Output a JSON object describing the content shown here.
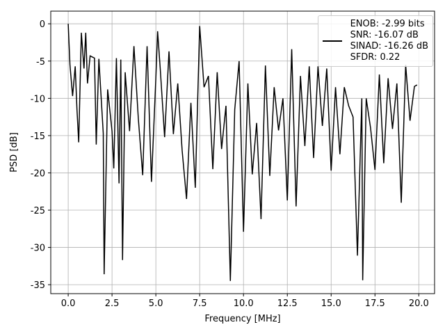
{
  "chart_data": {
    "type": "line",
    "xlabel": "Frequency [MHz]",
    "ylabel": "PSD [dB]",
    "x": [
      0,
      0.1,
      0.25,
      0.4,
      0.5,
      0.6,
      0.75,
      0.9,
      1.0,
      1.1,
      1.25,
      1.5,
      1.6,
      1.75,
      2.0,
      2.05,
      2.25,
      2.5,
      2.6,
      2.75,
      2.9,
      3.0,
      3.1,
      3.25,
      3.5,
      3.75,
      4.0,
      4.25,
      4.5,
      4.75,
      5.0,
      5.1,
      5.25,
      5.5,
      5.75,
      6.0,
      6.25,
      6.5,
      6.75,
      7.0,
      7.25,
      7.5,
      7.75,
      8.0,
      8.25,
      8.5,
      8.75,
      9.0,
      9.25,
      9.5,
      9.75,
      10.0,
      10.25,
      10.5,
      10.75,
      11.0,
      11.25,
      11.5,
      11.75,
      12.0,
      12.25,
      12.5,
      12.75,
      13.0,
      13.25,
      13.5,
      13.75,
      14.0,
      14.25,
      14.5,
      14.75,
      15.0,
      15.25,
      15.5,
      15.75,
      16.0,
      16.25,
      16.5,
      16.75,
      16.8,
      17.0,
      17.25,
      17.5,
      17.75,
      18.0,
      18.25,
      18.5,
      18.75,
      19.0,
      19.25,
      19.5,
      19.75,
      19.9
    ],
    "series": [
      {
        "name": "ENOB: -2.99 bits\nSNR: -16.07 dB\nSINAD: -16.26 dB\nSFDR: 0.22",
        "color": "#000000",
        "values": [
          0,
          -5.5,
          -9.7,
          -5.7,
          -11.5,
          -15.9,
          -1.2,
          -6.0,
          -1.2,
          -8.0,
          -4.3,
          -4.6,
          -16.2,
          -4.7,
          -14.7,
          -33.6,
          -8.8,
          -14.4,
          -19.4,
          -4.6,
          -21.4,
          -4.8,
          -31.7,
          -6.5,
          -14.4,
          -3.0,
          -12.7,
          -20.3,
          -3.0,
          -21.2,
          -7.3,
          -1.0,
          -6.0,
          -15.2,
          -3.7,
          -14.8,
          -8.0,
          -17.0,
          -23.5,
          -10.6,
          -22.0,
          -0.3,
          -8.5,
          -7.0,
          -19.5,
          -6.5,
          -16.8,
          -11.0,
          -34.5,
          -11.5,
          -5.0,
          -27.9,
          -8.0,
          -20.2,
          -13.3,
          -26.2,
          -5.6,
          -20.4,
          -8.5,
          -14.3,
          -10.0,
          -23.7,
          -3.4,
          -24.5,
          -7.0,
          -16.4,
          -5.7,
          -18.0,
          -5.7,
          -13.7,
          -6.0,
          -19.7,
          -8.5,
          -17.5,
          -8.5,
          -11.0,
          -12.5,
          -31.1,
          -10.0,
          -34.4,
          -10.0,
          -14.0,
          -19.6,
          -6.8,
          -18.7,
          -7.3,
          -14.1,
          -8.0,
          -24.0,
          -5.5,
          -13.0,
          -8.4,
          -8.2
        ]
      }
    ],
    "xlim": [
      -0.995,
      20.9
    ],
    "ylim": [
      -36.2,
      1.7
    ],
    "xticks": [
      {
        "value": 0,
        "label": "0.0"
      },
      {
        "value": 2.5,
        "label": "2.5"
      },
      {
        "value": 5,
        "label": "5.0"
      },
      {
        "value": 7.5,
        "label": "7.5"
      },
      {
        "value": 10,
        "label": "10.0"
      },
      {
        "value": 12.5,
        "label": "12.5"
      },
      {
        "value": 15,
        "label": "15.0"
      },
      {
        "value": 17.5,
        "label": "17.5"
      },
      {
        "value": 20,
        "label": "20.0"
      }
    ],
    "yticks": [
      0,
      -5,
      -10,
      -15,
      -20,
      -25,
      -30,
      -35
    ],
    "grid": true,
    "legend_position": "upper-right"
  }
}
